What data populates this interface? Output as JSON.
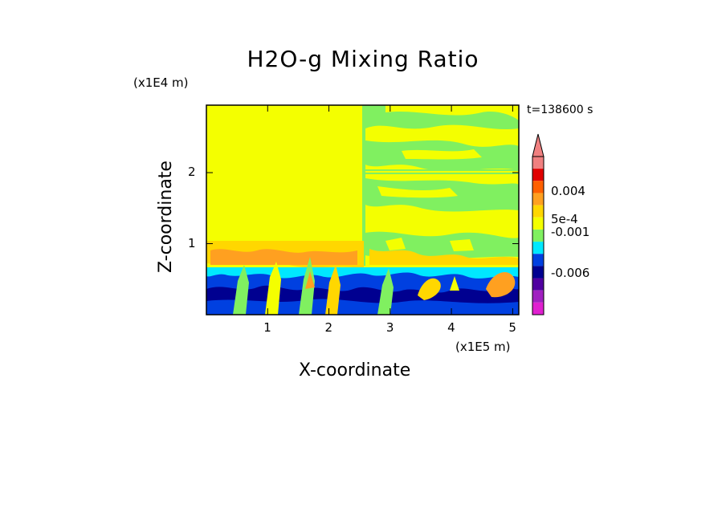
{
  "chart_data": {
    "type": "heatmap",
    "title": "H2O-g Mixing Ratio",
    "xlabel": "X-coordinate",
    "ylabel": "Z-coordinate",
    "x_unit": "(x1E5 m)",
    "y_unit": "(x1E4 m)",
    "time_label": "t=138600 s",
    "x_ticks": [
      "1",
      "2",
      "3",
      "4",
      "5"
    ],
    "x_tick_values": [
      1,
      2,
      3,
      4,
      5
    ],
    "y_ticks": [
      "1",
      "2"
    ],
    "y_tick_values": [
      1,
      2
    ],
    "xlim": [
      0,
      5.1
    ],
    "ylim": [
      0,
      2.95
    ],
    "colorbar": {
      "labels": [
        "0.004",
        "5e-4",
        "-0.001",
        "-0.006"
      ],
      "colors_top_to_bottom": [
        "#f08080",
        "#e00000",
        "#ff6000",
        "#ffa020",
        "#ffd700",
        "#f4ff00",
        "#80f060",
        "#00e8ff",
        "#0040e0",
        "#000090",
        "#5000a0",
        "#a020c0",
        "#e020d0"
      ]
    },
    "regions": [
      {
        "name": "upper-left uniform layer",
        "x": [
          0,
          2.55
        ],
        "z": [
          1.0,
          2.95
        ],
        "color": "#f4ff00"
      },
      {
        "name": "lower moist layer",
        "x": [
          0,
          5.1
        ],
        "z": [
          0,
          0.7
        ],
        "color": "#0040e0"
      }
    ]
  }
}
